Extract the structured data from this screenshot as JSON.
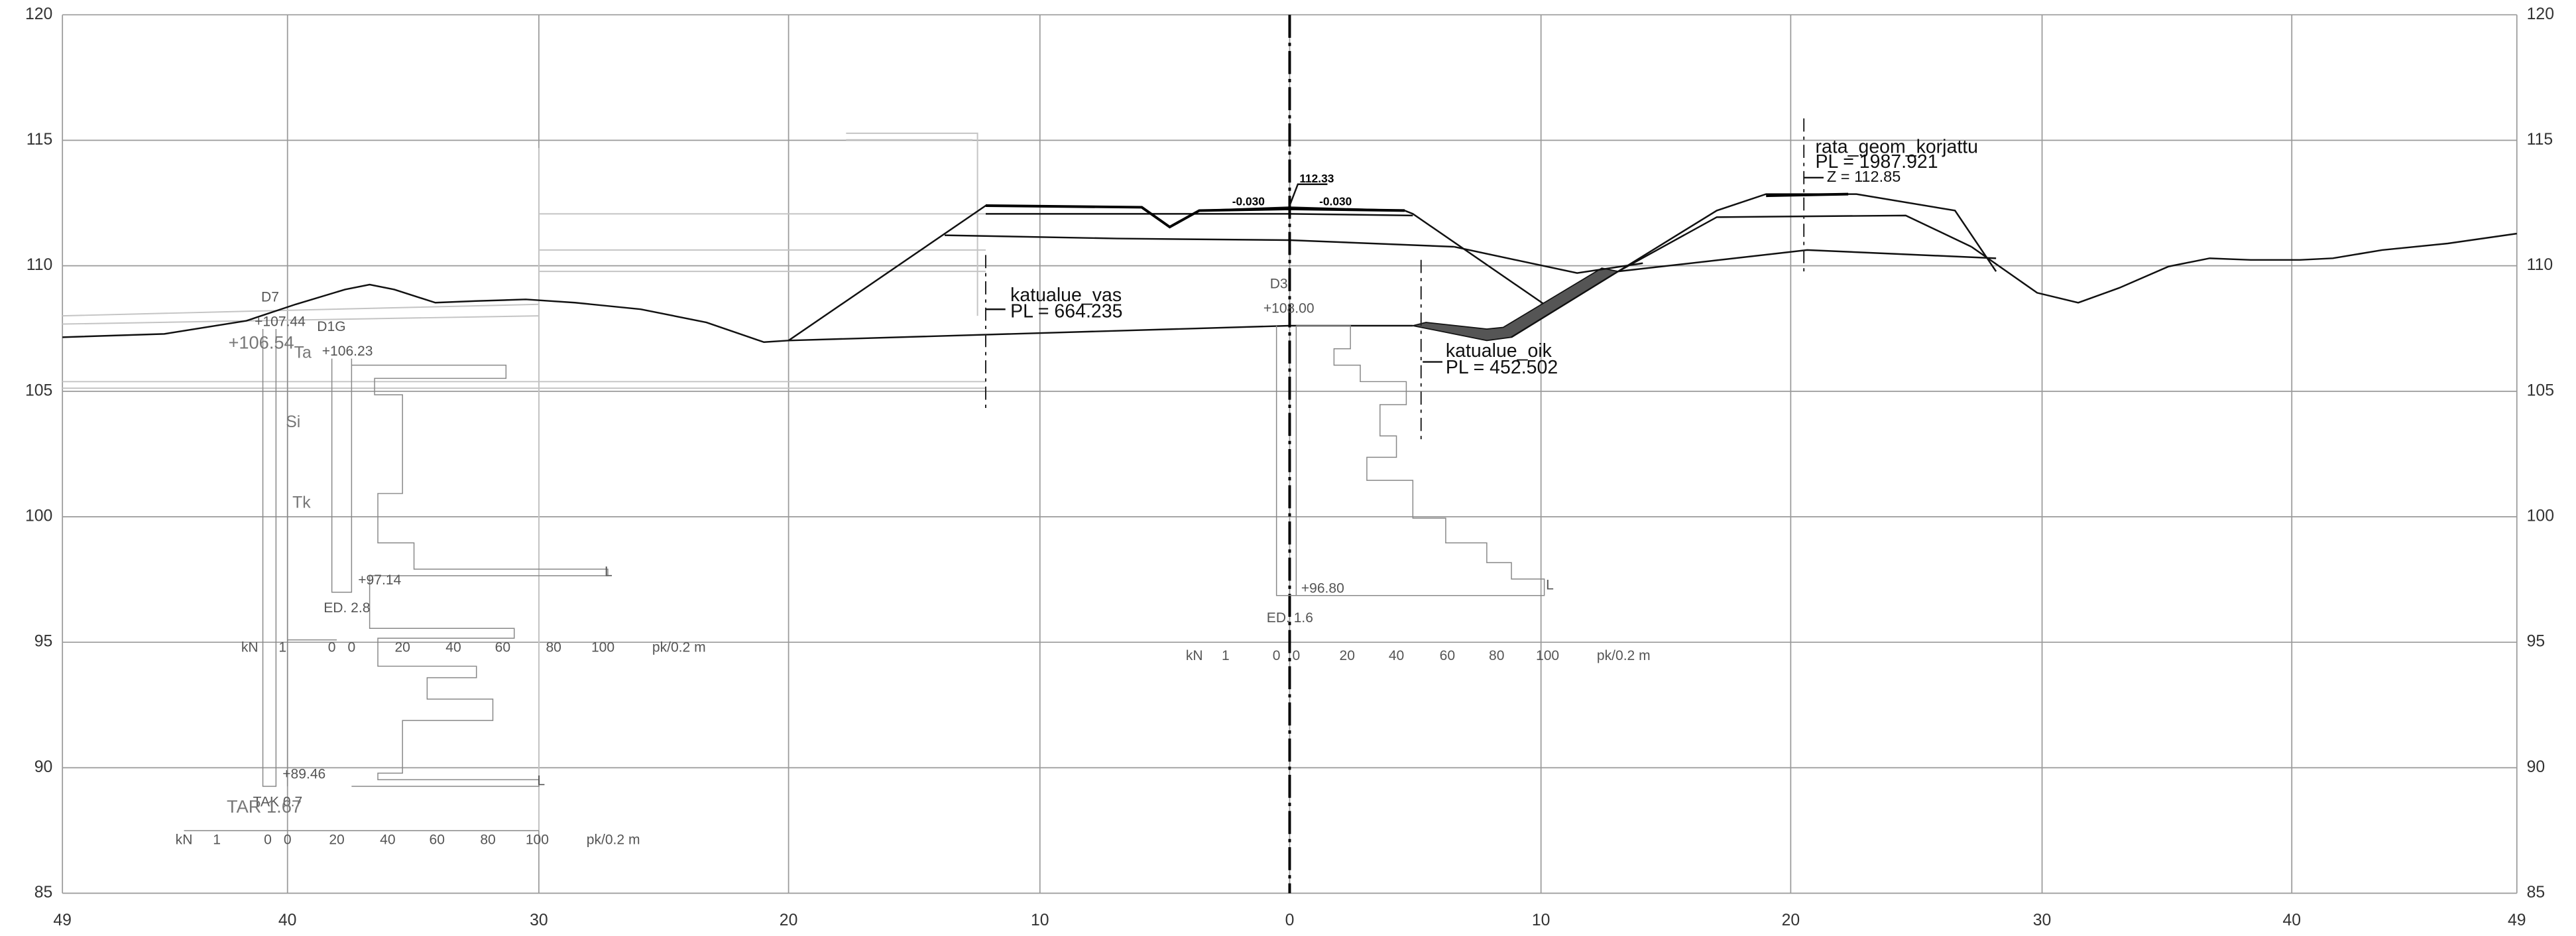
{
  "axes": {
    "left": [
      "120",
      "115",
      "110",
      "105",
      "100",
      "95",
      "90",
      "85"
    ],
    "right": [
      "120",
      "115",
      "110",
      "105",
      "100",
      "95",
      "90",
      "85"
    ],
    "bottom": [
      "49",
      "40",
      "30",
      "20",
      "10",
      "0",
      "10",
      "20",
      "30",
      "40",
      "49"
    ]
  },
  "probe_scale": [
    "kN",
    "1",
    "0",
    "0",
    "20",
    "40",
    "60",
    "80",
    "100",
    "pk/0.2 m"
  ],
  "annotations": {
    "katualue_vas": "katualue_vas",
    "pl_vas": "PL = 664.235",
    "katualue_oik": "katualue_oik",
    "pl_oik": "PL = 452.502",
    "rata": "rata_geom_korjattu",
    "pl_rata": "PL = 1987.921",
    "z_rata": "Z = 112.85",
    "center_level": "112.33",
    "slope_left": "-0.030",
    "slope_right": "-0.030"
  },
  "probes": {
    "d7": "D7",
    "d7_top": "+107.44",
    "tar_top": "+106.54",
    "d1g": "D1G",
    "d1g_top": "+106.23",
    "ta": "Ta",
    "si": "Si",
    "tk": "Tk",
    "d1g_bottom": "+97.14",
    "d1g_ed": "ED. 2.8",
    "d7_bottom": "+89.46",
    "tak": "TAK 0.7",
    "tar": "TAR 1.67",
    "d3": "D3",
    "d3_top": "+108.00",
    "d3_bottom": "+96.80",
    "d3_ed": "ED. 1.6",
    "end_mark": "L"
  }
}
